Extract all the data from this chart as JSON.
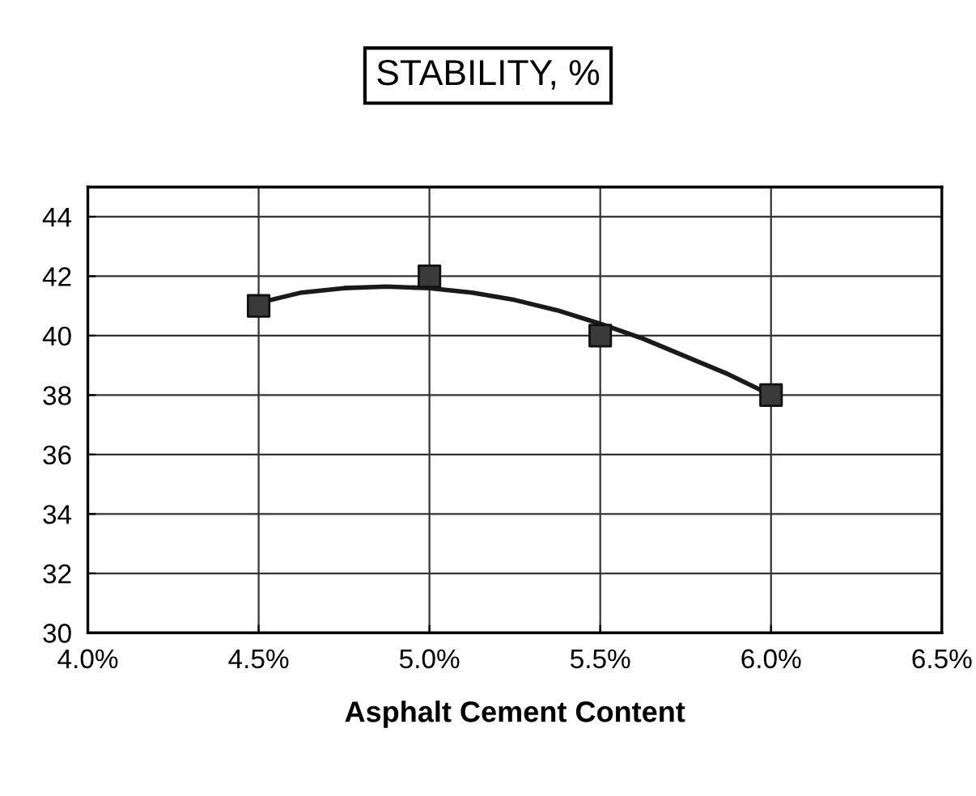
{
  "chart_data": {
    "type": "scatter",
    "title": "STABILITY, %",
    "xlabel": "Asphalt Cement Content",
    "xlim": [
      4.0,
      6.5
    ],
    "xticks": [
      {
        "value": 4.0,
        "label": "4.0%"
      },
      {
        "value": 4.5,
        "label": "4.5%"
      },
      {
        "value": 5.0,
        "label": "5.0%"
      },
      {
        "value": 5.5,
        "label": "5.5%"
      },
      {
        "value": 6.0,
        "label": "6.0%"
      },
      {
        "value": 6.5,
        "label": "6.5%"
      }
    ],
    "ylim": [
      30,
      45
    ],
    "yticks": [
      30,
      32,
      34,
      36,
      38,
      40,
      42,
      44
    ],
    "grid": true,
    "series": [
      {
        "type": "line",
        "color": "#1a1a1a",
        "marker": "none",
        "x": [
          4.5,
          4.625,
          4.75,
          4.875,
          5.0,
          5.125,
          5.25,
          5.375,
          5.5,
          5.625,
          5.75,
          5.875,
          6.0
        ],
        "values": [
          41.1,
          41.45,
          41.6,
          41.65,
          41.6,
          41.45,
          41.2,
          40.85,
          40.4,
          39.9,
          39.3,
          38.7,
          38.0
        ]
      },
      {
        "color": "#3a3a3a",
        "marker": "square",
        "x": [
          4.5,
          5.0,
          5.5,
          6.0
        ],
        "values": [
          41,
          42,
          40,
          38
        ]
      }
    ]
  }
}
